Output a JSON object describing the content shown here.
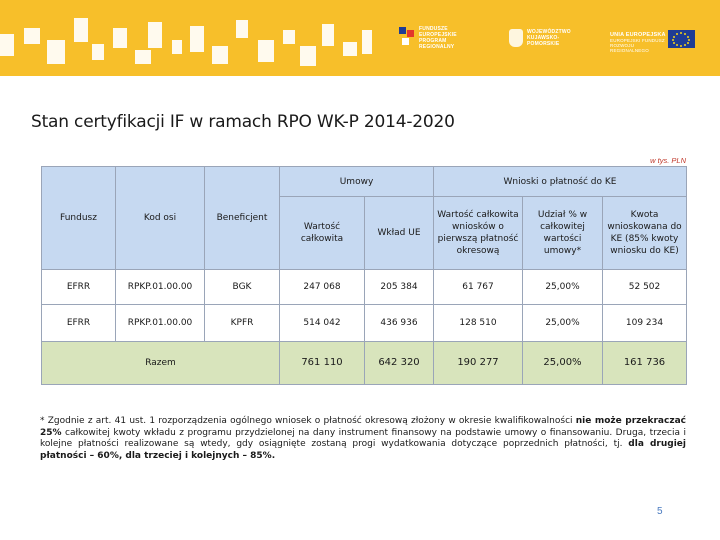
{
  "banner": {
    "logo_fe": "FUNDUSZE EUROPEJSKIE PROGRAM REGIONALNY",
    "logo_woj": "WOJEWÓDZTWO KUJAWSKO-POMORSKIE",
    "logo_ue_l1": "UNIA EUROPEJSKA",
    "logo_ue_l2": "EUROPEJSKI FUNDUSZ ROZWOJU REGIONALNEGO",
    "colors": {
      "band": "#f7bf2a",
      "eu_flag": "#1f3c94"
    }
  },
  "page_title": "Stan certyfikacji IF w ramach RPO WK-P 2014-2020",
  "unit_note": "w tys. PLN",
  "table": {
    "group_umowy": "Umowy",
    "group_wnioski": "Wnioski o płatność do KE",
    "h_fundusz": "Fundusz",
    "h_kod_osi": "Kod osi",
    "h_beneficjent": "Beneficjent",
    "h_wartosc": "Wartość całkowita",
    "h_wklad": "Wkład UE",
    "h_wartosc_wniosk": "Wartość całkowita wniosków o pierwszą płatność okresową",
    "h_udzial": "Udział % w całkowitej wartości umowy*",
    "h_kwota": "Kwota wnioskowana do KE (85% kwoty wniosku do KE)",
    "rows": [
      {
        "fundusz": "EFRR",
        "kod": "RPKP.01.00.00",
        "beneficjent": "BGK",
        "wartosc": "247 068",
        "wklad": "205 384",
        "wniosek": "61 767",
        "udzial": "25,00%",
        "kwota": "52 502"
      },
      {
        "fundusz": "EFRR",
        "kod": "RPKP.01.00.00",
        "beneficjent": "KPFR",
        "wartosc": "514 042",
        "wklad": "436 936",
        "wniosek": "128 510",
        "udzial": "25,00%",
        "kwota": "109 234"
      }
    ],
    "total": {
      "label": "Razem",
      "wartosc": "761 110",
      "wklad": "642 320",
      "wniosek": "190 277",
      "udzial": "25,00%",
      "kwota": "161 736"
    }
  },
  "footnote": {
    "p1": "* Zgodnie z art. 41 ust. 1 rozporządzenia ogólnego wniosek o płatność okresową złożony w okresie kwalifikowalności ",
    "b1": "nie może przekraczać 25%",
    "p2": " całkowitej kwoty wkładu z programu przydzielonej na dany instrument finansowy na podstawie umowy o finansowaniu. Druga, trzecia i kolejne płatności realizowane są wtedy, gdy osiągnięte zostaną progi wydatkowania dotyczące poprzednich płatności, tj. ",
    "b2": "dla drugiej płatności – 60%, dla trzeciej i kolejnych – 85%."
  },
  "page_number": "5"
}
